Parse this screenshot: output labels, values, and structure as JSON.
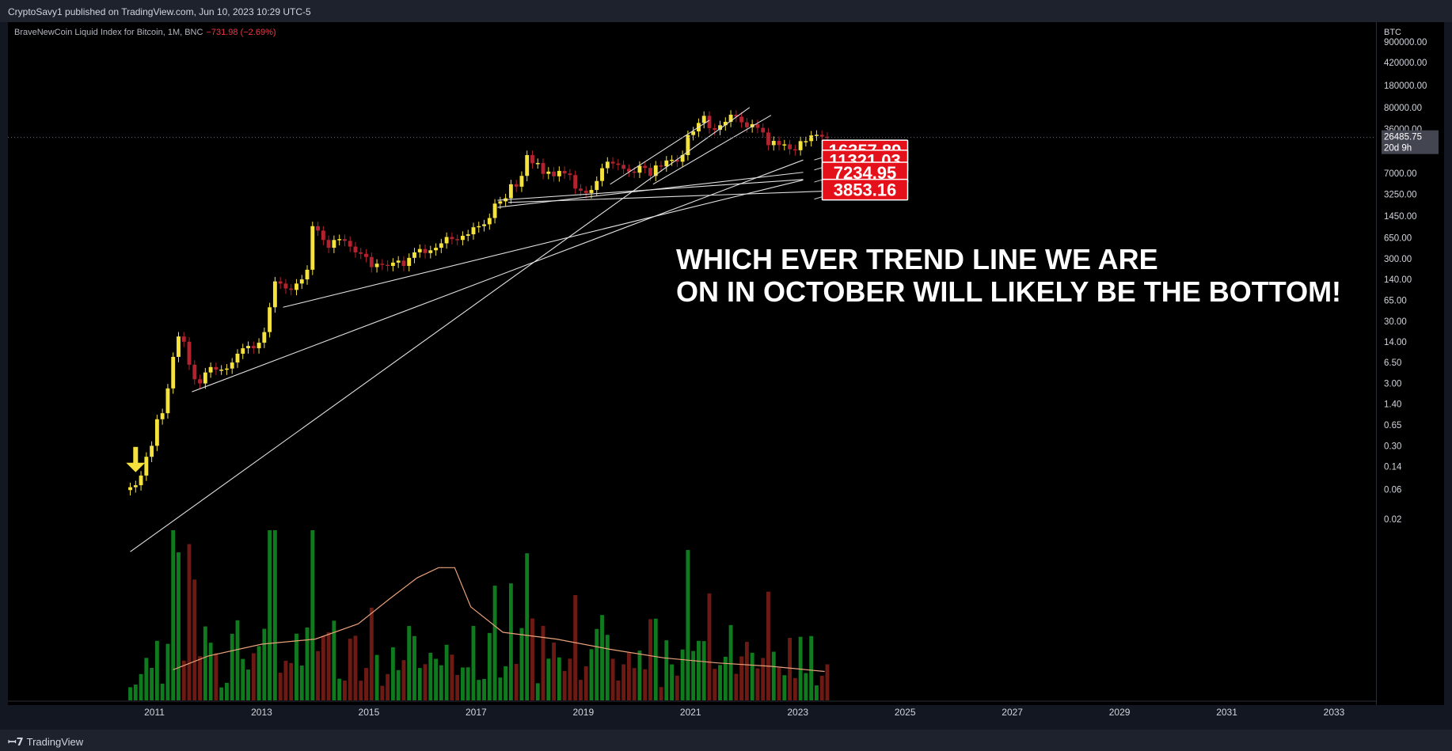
{
  "header": {
    "publisher_line": "CryptoSavy1 published on TradingView.com, Jun 10, 2023 10:29 UTC-5"
  },
  "legend": {
    "symbol": "BraveNewCoin Liquid Index for Bitcoin, 1M, BNC",
    "change": "−731.98 (−2.69%)"
  },
  "annotation": {
    "line1": "WHICH EVER TREND LINE WE ARE",
    "line2": "ON IN OCTOBER WILL LIKELY BE THE BOTTOM!"
  },
  "footer": {
    "brand": "TradingView"
  },
  "colors": {
    "up": "#f5e23c",
    "down": "#b2222f",
    "vol_up": "#0f7a1e",
    "vol_down": "#6e1a14",
    "ma": "#e9a17a",
    "label_bg": "#e5111a",
    "price_tag": "#434651"
  },
  "chart_data": {
    "type": "candlestick",
    "symbol": "BraveNewCoin Liquid Index for Bitcoin",
    "interval": "1M",
    "exchange": "BNC",
    "y_scale": "log",
    "y_currency": "BTC",
    "y_ticks": [
      "900000.00",
      "420000.00",
      "180000.00",
      "80000.00",
      "36000.00",
      "7000.00",
      "3250.00",
      "1450.00",
      "650.00",
      "300.00",
      "140.00",
      "65.00",
      "30.00",
      "14.00",
      "6.50",
      "3.00",
      "1.40",
      "0.65",
      "0.30",
      "0.14",
      "0.06",
      "0.02"
    ],
    "y_tick_values": [
      900000,
      420000,
      180000,
      80000,
      36000,
      7000,
      3250,
      1450,
      650,
      300,
      140,
      65,
      30,
      14,
      6.5,
      3,
      1.4,
      0.65,
      0.3,
      0.14,
      0.06,
      0.02
    ],
    "x_ticks": [
      "2011",
      "2013",
      "2015",
      "2017",
      "2019",
      "2021",
      "2023",
      "2025",
      "2027",
      "2029",
      "2031",
      "2033"
    ],
    "x_range": [
      2010.2,
      2033.9
    ],
    "current_price": {
      "value": "26485.75",
      "countdown": "20d 9h"
    },
    "price_points": [
      [
        2010.55,
        0.065
      ],
      [
        2010.65,
        0.07
      ],
      [
        2010.75,
        0.1
      ],
      [
        2010.85,
        0.2
      ],
      [
        2010.95,
        0.3
      ],
      [
        2011.05,
        0.8
      ],
      [
        2011.15,
        1.0
      ],
      [
        2011.25,
        2.5
      ],
      [
        2011.35,
        8
      ],
      [
        2011.45,
        17
      ],
      [
        2011.55,
        14
      ],
      [
        2011.65,
        6
      ],
      [
        2011.75,
        3.5
      ],
      [
        2011.85,
        3
      ],
      [
        2011.95,
        4.5
      ],
      [
        2012.05,
        5.5
      ],
      [
        2012.15,
        5
      ],
      [
        2012.25,
        5
      ],
      [
        2012.35,
        5.2
      ],
      [
        2012.45,
        6.5
      ],
      [
        2012.55,
        9
      ],
      [
        2012.65,
        11
      ],
      [
        2012.75,
        12
      ],
      [
        2012.85,
        11
      ],
      [
        2012.95,
        13.5
      ],
      [
        2013.05,
        20
      ],
      [
        2013.15,
        50
      ],
      [
        2013.25,
        130
      ],
      [
        2013.35,
        120
      ],
      [
        2013.45,
        100
      ],
      [
        2013.55,
        95
      ],
      [
        2013.65,
        120
      ],
      [
        2013.75,
        140
      ],
      [
        2013.85,
        200
      ],
      [
        2013.95,
        1000
      ],
      [
        2014.05,
        850
      ],
      [
        2014.15,
        600
      ],
      [
        2014.25,
        450
      ],
      [
        2014.35,
        600
      ],
      [
        2014.45,
        620
      ],
      [
        2014.55,
        580
      ],
      [
        2014.65,
        470
      ],
      [
        2014.75,
        380
      ],
      [
        2014.85,
        360
      ],
      [
        2014.95,
        320
      ],
      [
        2015.05,
        220
      ],
      [
        2015.15,
        250
      ],
      [
        2015.25,
        240
      ],
      [
        2015.35,
        230
      ],
      [
        2015.45,
        260
      ],
      [
        2015.55,
        280
      ],
      [
        2015.65,
        230
      ],
      [
        2015.75,
        310
      ],
      [
        2015.85,
        380
      ],
      [
        2015.95,
        430
      ],
      [
        2016.05,
        370
      ],
      [
        2016.15,
        410
      ],
      [
        2016.25,
        450
      ],
      [
        2016.35,
        530
      ],
      [
        2016.45,
        670
      ],
      [
        2016.55,
        620
      ],
      [
        2016.65,
        600
      ],
      [
        2016.75,
        700
      ],
      [
        2016.85,
        740
      ],
      [
        2016.95,
        960
      ],
      [
        2017.05,
        1000
      ],
      [
        2017.15,
        1070
      ],
      [
        2017.25,
        1350
      ],
      [
        2017.35,
        2300
      ],
      [
        2017.45,
        2500
      ],
      [
        2017.55,
        2800
      ],
      [
        2017.65,
        4700
      ],
      [
        2017.75,
        4300
      ],
      [
        2017.85,
        6400
      ],
      [
        2017.95,
        13800
      ],
      [
        2018.05,
        10200
      ],
      [
        2018.15,
        10300
      ],
      [
        2018.25,
        6900
      ],
      [
        2018.35,
        7500
      ],
      [
        2018.45,
        6300
      ],
      [
        2018.55,
        7700
      ],
      [
        2018.65,
        7000
      ],
      [
        2018.75,
        6600
      ],
      [
        2018.85,
        4000
      ],
      [
        2018.95,
        3700
      ],
      [
        2019.05,
        3400
      ],
      [
        2019.15,
        3800
      ],
      [
        2019.25,
        5300
      ],
      [
        2019.35,
        8500
      ],
      [
        2019.45,
        10800
      ],
      [
        2019.55,
        10100
      ],
      [
        2019.65,
        9600
      ],
      [
        2019.75,
        8300
      ],
      [
        2019.85,
        7500
      ],
      [
        2019.95,
        7200
      ],
      [
        2020.05,
        9300
      ],
      [
        2020.15,
        8600
      ],
      [
        2020.25,
        6400
      ],
      [
        2020.35,
        9400
      ],
      [
        2020.45,
        9100
      ],
      [
        2020.55,
        11300
      ],
      [
        2020.65,
        11600
      ],
      [
        2020.75,
        10800
      ],
      [
        2020.85,
        13800
      ],
      [
        2020.95,
        28900
      ],
      [
        2021.05,
        33100
      ],
      [
        2021.15,
        45200
      ],
      [
        2021.25,
        58800
      ],
      [
        2021.35,
        37300
      ],
      [
        2021.45,
        35000
      ],
      [
        2021.55,
        41500
      ],
      [
        2021.65,
        47100
      ],
      [
        2021.75,
        61300
      ],
      [
        2021.85,
        57000
      ],
      [
        2021.95,
        46200
      ],
      [
        2022.05,
        38500
      ],
      [
        2022.15,
        43200
      ],
      [
        2022.25,
        37700
      ],
      [
        2022.35,
        31800
      ],
      [
        2022.45,
        19900
      ],
      [
        2022.55,
        23300
      ],
      [
        2022.65,
        20000
      ],
      [
        2022.75,
        20500
      ],
      [
        2022.85,
        17100
      ],
      [
        2022.95,
        16500
      ],
      [
        2023.05,
        23100
      ],
      [
        2023.15,
        23100
      ],
      [
        2023.25,
        28500
      ],
      [
        2023.35,
        29200
      ],
      [
        2023.45,
        27200
      ],
      [
        2023.55,
        26485.75
      ]
    ],
    "volume_ma_points": [
      [
        2011.35,
        0.18
      ],
      [
        2012.0,
        0.26
      ],
      [
        2013.0,
        0.33
      ],
      [
        2014.0,
        0.36
      ],
      [
        2014.8,
        0.45
      ],
      [
        2015.4,
        0.6
      ],
      [
        2015.9,
        0.72
      ],
      [
        2016.3,
        0.78
      ],
      [
        2016.6,
        0.78
      ],
      [
        2016.9,
        0.55
      ],
      [
        2017.5,
        0.4
      ],
      [
        2018.5,
        0.36
      ],
      [
        2019.5,
        0.3
      ],
      [
        2020.5,
        0.25
      ],
      [
        2021.5,
        0.22
      ],
      [
        2022.5,
        0.2
      ],
      [
        2023.5,
        0.17
      ]
    ],
    "trend_lines": [
      {
        "x1": 2010.55,
        "y1": 0.006,
        "x2": 2022.1,
        "y2": 80000
      },
      {
        "x1": 2011.7,
        "y1": 2.2,
        "x2": 2023.1,
        "y2": 11500
      },
      {
        "x1": 2013.4,
        "y1": 50,
        "x2": 2023.1,
        "y2": 5500
      },
      {
        "x1": 2017.4,
        "y1": 2000,
        "x2": 2023.1,
        "y2": 7300
      },
      {
        "x1": 2017.4,
        "y1": 2600,
        "x2": 2023.1,
        "y2": 5600
      },
      {
        "x1": 2017.6,
        "y1": 2400,
        "x2": 2024.3,
        "y2": 3850
      },
      {
        "x1": 2019.5,
        "y1": 4700,
        "x2": 2021.35,
        "y2": 50000
      },
      {
        "x1": 2020.3,
        "y1": 4700,
        "x2": 2022.5,
        "y2": 60000
      }
    ],
    "price_labels": [
      {
        "text": "16357.89",
        "x": 2023.1,
        "y": 16357.89
      },
      {
        "text": "11321.03",
        "x": 2023.1,
        "y": 11321.03
      },
      {
        "text": "7234.95",
        "x": 2023.1,
        "y": 7234.95
      },
      {
        "text": "3853.16",
        "x": 2023.1,
        "y": 3853.16
      }
    ],
    "marker": {
      "type": "arrow-down",
      "x": 2010.65,
      "y": 0.12
    }
  }
}
